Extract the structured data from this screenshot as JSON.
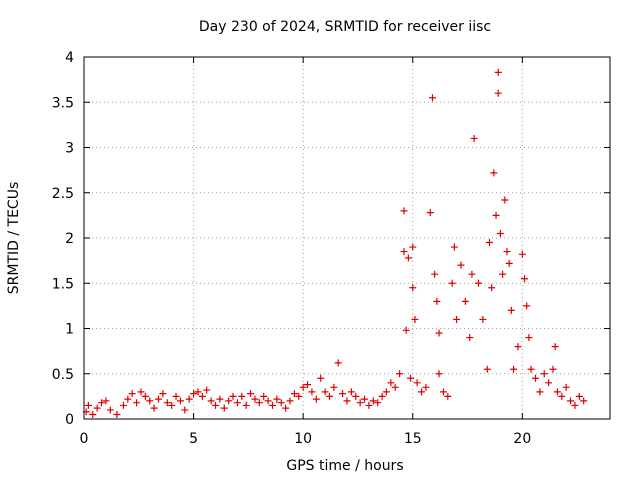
{
  "chart_data": {
    "type": "scatter",
    "title": "Day 230 of 2024, SRMTID for receiver iisc",
    "xlabel": "GPS time / hours",
    "ylabel": "SRMTID / TECUs",
    "xlim": [
      0,
      24
    ],
    "ylim": [
      0,
      4
    ],
    "xticks": [
      0,
      5,
      10,
      15,
      20
    ],
    "yticks": [
      0,
      0.5,
      1,
      1.5,
      2,
      2.5,
      3,
      3.5,
      4
    ],
    "ytick_labels": [
      "0",
      "0.5",
      "1",
      "1.5",
      "2",
      "2.5",
      "3",
      "3.5",
      "4"
    ],
    "grid": true,
    "marker": "+",
    "series": [
      {
        "name": "SRMTID",
        "color": "#e00000",
        "points": [
          [
            0.1,
            0.08
          ],
          [
            0.2,
            0.15
          ],
          [
            0.4,
            0.05
          ],
          [
            0.6,
            0.12
          ],
          [
            0.8,
            0.18
          ],
          [
            1.0,
            0.2
          ],
          [
            1.2,
            0.1
          ],
          [
            1.5,
            0.05
          ],
          [
            1.8,
            0.15
          ],
          [
            2.0,
            0.22
          ],
          [
            2.2,
            0.28
          ],
          [
            2.4,
            0.18
          ],
          [
            2.6,
            0.3
          ],
          [
            2.8,
            0.25
          ],
          [
            3.0,
            0.2
          ],
          [
            3.2,
            0.12
          ],
          [
            3.4,
            0.22
          ],
          [
            3.6,
            0.28
          ],
          [
            3.8,
            0.18
          ],
          [
            4.0,
            0.15
          ],
          [
            4.2,
            0.25
          ],
          [
            4.4,
            0.2
          ],
          [
            4.6,
            0.1
          ],
          [
            4.8,
            0.22
          ],
          [
            5.0,
            0.28
          ],
          [
            5.2,
            0.3
          ],
          [
            5.4,
            0.25
          ],
          [
            5.6,
            0.32
          ],
          [
            5.8,
            0.2
          ],
          [
            6.0,
            0.15
          ],
          [
            6.2,
            0.22
          ],
          [
            6.4,
            0.12
          ],
          [
            6.6,
            0.2
          ],
          [
            6.8,
            0.25
          ],
          [
            7.0,
            0.18
          ],
          [
            7.2,
            0.25
          ],
          [
            7.4,
            0.15
          ],
          [
            7.6,
            0.28
          ],
          [
            7.8,
            0.22
          ],
          [
            8.0,
            0.18
          ],
          [
            8.2,
            0.25
          ],
          [
            8.4,
            0.2
          ],
          [
            8.6,
            0.15
          ],
          [
            8.8,
            0.22
          ],
          [
            9.0,
            0.18
          ],
          [
            9.2,
            0.12
          ],
          [
            9.4,
            0.2
          ],
          [
            9.6,
            0.28
          ],
          [
            9.8,
            0.25
          ],
          [
            10.0,
            0.35
          ],
          [
            10.2,
            0.38
          ],
          [
            10.4,
            0.3
          ],
          [
            10.6,
            0.22
          ],
          [
            10.8,
            0.45
          ],
          [
            11.0,
            0.3
          ],
          [
            11.2,
            0.25
          ],
          [
            11.4,
            0.35
          ],
          [
            11.6,
            0.62
          ],
          [
            11.8,
            0.28
          ],
          [
            12.0,
            0.2
          ],
          [
            12.2,
            0.3
          ],
          [
            12.4,
            0.25
          ],
          [
            12.6,
            0.18
          ],
          [
            12.8,
            0.22
          ],
          [
            13.0,
            0.15
          ],
          [
            13.2,
            0.2
          ],
          [
            13.4,
            0.18
          ],
          [
            13.6,
            0.25
          ],
          [
            13.8,
            0.3
          ],
          [
            14.0,
            0.4
          ],
          [
            14.2,
            0.35
          ],
          [
            14.4,
            0.5
          ],
          [
            14.6,
            1.85
          ],
          [
            14.6,
            2.3
          ],
          [
            14.7,
            0.98
          ],
          [
            14.8,
            1.78
          ],
          [
            14.9,
            0.45
          ],
          [
            15.0,
            1.9
          ],
          [
            15.0,
            1.45
          ],
          [
            15.1,
            1.1
          ],
          [
            15.2,
            0.4
          ],
          [
            15.4,
            0.3
          ],
          [
            15.6,
            0.35
          ],
          [
            15.8,
            2.28
          ],
          [
            15.9,
            3.55
          ],
          [
            16.0,
            1.6
          ],
          [
            16.1,
            1.3
          ],
          [
            16.2,
            0.95
          ],
          [
            16.2,
            0.5
          ],
          [
            16.4,
            0.3
          ],
          [
            16.6,
            0.25
          ],
          [
            16.8,
            1.5
          ],
          [
            16.9,
            1.9
          ],
          [
            17.0,
            1.1
          ],
          [
            17.2,
            1.7
          ],
          [
            17.4,
            1.3
          ],
          [
            17.6,
            0.9
          ],
          [
            17.7,
            1.6
          ],
          [
            17.8,
            3.1
          ],
          [
            18.0,
            1.5
          ],
          [
            18.2,
            1.1
          ],
          [
            18.4,
            0.55
          ],
          [
            18.5,
            1.95
          ],
          [
            18.6,
            1.45
          ],
          [
            18.7,
            2.72
          ],
          [
            18.8,
            2.25
          ],
          [
            18.9,
            3.83
          ],
          [
            18.9,
            3.6
          ],
          [
            19.0,
            2.05
          ],
          [
            19.1,
            1.6
          ],
          [
            19.2,
            2.42
          ],
          [
            19.3,
            1.85
          ],
          [
            19.4,
            1.72
          ],
          [
            19.5,
            1.2
          ],
          [
            19.6,
            0.55
          ],
          [
            19.8,
            0.8
          ],
          [
            20.0,
            1.82
          ],
          [
            20.1,
            1.55
          ],
          [
            20.2,
            1.25
          ],
          [
            20.3,
            0.9
          ],
          [
            20.4,
            0.55
          ],
          [
            20.6,
            0.45
          ],
          [
            20.8,
            0.3
          ],
          [
            21.0,
            0.5
          ],
          [
            21.2,
            0.4
          ],
          [
            21.4,
            0.55
          ],
          [
            21.5,
            0.8
          ],
          [
            21.6,
            0.3
          ],
          [
            21.8,
            0.25
          ],
          [
            22.0,
            0.35
          ],
          [
            22.2,
            0.2
          ],
          [
            22.4,
            0.15
          ],
          [
            22.6,
            0.25
          ],
          [
            22.8,
            0.2
          ]
        ]
      }
    ]
  }
}
